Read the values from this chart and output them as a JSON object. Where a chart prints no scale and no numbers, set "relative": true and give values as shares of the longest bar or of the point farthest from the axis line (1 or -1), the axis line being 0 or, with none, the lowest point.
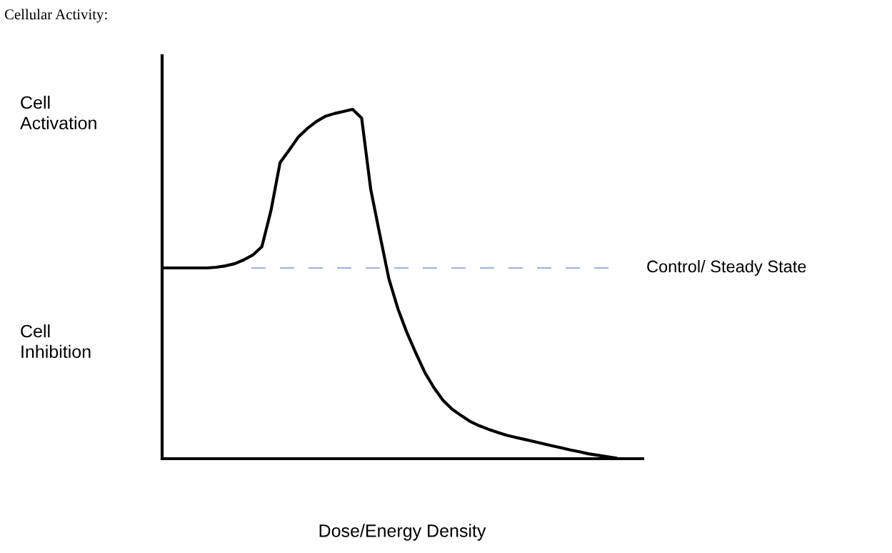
{
  "chart_data": {
    "type": "line",
    "title": "Cellular Activity:",
    "xlabel": "Dose/Energy Density",
    "relative": true,
    "categories": [
      null,
      null,
      null,
      null,
      null,
      null,
      null,
      null,
      null,
      null,
      null,
      null,
      null,
      null,
      null,
      null,
      null,
      null,
      null,
      null,
      null,
      null,
      null,
      null,
      null,
      null,
      null,
      null,
      null,
      null,
      null,
      null,
      null,
      null,
      null,
      null,
      null,
      null,
      null,
      null,
      null,
      null,
      null,
      null,
      null,
      null,
      null,
      null,
      null,
      null,
      null
    ],
    "series": [
      {
        "color": "#000000",
        "values": [
          0.546,
          0.546,
          0.546,
          0.546,
          0.546,
          0.546,
          0.548,
          0.552,
          0.558,
          0.569,
          0.583,
          0.607,
          0.71,
          0.847,
          0.883,
          0.92,
          0.945,
          0.965,
          0.98,
          0.988,
          0.994,
          1,
          0.975,
          0.771,
          0.642,
          0.515,
          0.429,
          0.36,
          0.301,
          0.245,
          0.202,
          0.166,
          0.141,
          0.123,
          0.106,
          0.094,
          0.084,
          0.075,
          0.067,
          0.061,
          0.055,
          0.049,
          0.043,
          0.037,
          0.031,
          0.025,
          0.02,
          0.014,
          0.01,
          0.006,
          0.002
        ]
      }
    ],
    "ref_lines": [
      {
        "axis": "y",
        "value": 0.546,
        "label": "Control/ Steady State",
        "color": "#7b9bd1",
        "line_style": "dashed"
      }
    ],
    "annotations": [
      "Cell\nActivation",
      "Cell\nInhibition"
    ]
  }
}
